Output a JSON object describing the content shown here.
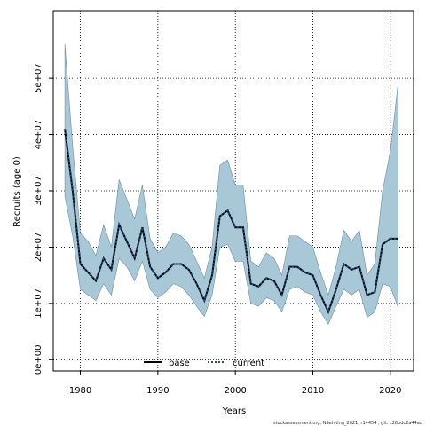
{
  "chart_data": {
    "type": "area",
    "xlabel": "Years",
    "ylabel": "Recruits (age 0)",
    "xlim": [
      1976.5,
      2023
    ],
    "ylim": [
      -2000000,
      62000000
    ],
    "x_ticks": [
      1980,
      1990,
      2000,
      2010,
      2020
    ],
    "x_tick_labels": [
      "1980",
      "1990",
      "2000",
      "2010",
      "2020"
    ],
    "y_ticks": [
      0,
      10000000,
      20000000,
      30000000,
      40000000,
      50000000
    ],
    "y_tick_labels": [
      "0e+00",
      "1e+07",
      "2e+07",
      "3e+07",
      "4e+07",
      "5e+07"
    ],
    "grid": true,
    "legend_position": "bottom",
    "legend": [
      {
        "label": "base",
        "style": "solid",
        "color": "#000000"
      },
      {
        "label": "current",
        "style": "dotted",
        "color": "#1f4e79"
      }
    ],
    "band_color": "#a8c8d8",
    "x": [
      1978,
      1979,
      1980,
      1981,
      1982,
      1983,
      1984,
      1985,
      1986,
      1987,
      1988,
      1989,
      1990,
      1991,
      1992,
      1993,
      1994,
      1995,
      1996,
      1997,
      1998,
      1999,
      2000,
      2001,
      2002,
      2003,
      2004,
      2005,
      2006,
      2007,
      2008,
      2009,
      2010,
      2011,
      2012,
      2013,
      2014,
      2015,
      2016,
      2017,
      2018,
      2019,
      2020,
      2021
    ],
    "series": [
      {
        "name": "base",
        "style": "solid",
        "values": [
          41000000,
          30000000,
          17000000,
          15500000,
          14000000,
          18000000,
          16000000,
          24000000,
          21000000,
          18000000,
          23500000,
          16500000,
          14500000,
          15500000,
          17000000,
          17000000,
          16000000,
          13500000,
          10500000,
          15000000,
          25500000,
          26500000,
          23500000,
          23500000,
          13500000,
          13000000,
          14500000,
          14000000,
          11500000,
          16500000,
          16500000,
          15500000,
          15000000,
          11500000,
          8500000,
          12500000,
          17000000,
          16000000,
          16500000,
          11500000,
          12000000,
          20500000,
          21500000,
          21500000
        ],
        "lower": [
          29000000,
          22000000,
          12500000,
          11500000,
          10500000,
          13500000,
          11500000,
          18000000,
          16500000,
          14000000,
          17500000,
          12500000,
          11000000,
          12000000,
          13500000,
          13000000,
          11500000,
          9500000,
          7700000,
          11500000,
          20000000,
          20500000,
          17500000,
          17500000,
          10000000,
          9500000,
          11000000,
          10500000,
          8500000,
          12500000,
          13000000,
          12000000,
          11500000,
          8500000,
          6300000,
          9500000,
          12500000,
          11500000,
          12500000,
          7500000,
          8500000,
          13500000,
          13000000,
          9300000
        ],
        "upper": [
          56000000,
          38000000,
          22500000,
          21000000,
          18500000,
          24000000,
          20000000,
          32000000,
          28500000,
          25000000,
          31000000,
          21500000,
          19000000,
          20000000,
          22500000,
          22000000,
          20500000,
          17500000,
          14500000,
          20000000,
          34500000,
          35500000,
          31000000,
          31000000,
          17500000,
          16500000,
          19000000,
          18000000,
          15000000,
          22000000,
          22000000,
          21000000,
          20000000,
          15500000,
          11500000,
          16500000,
          23000000,
          21000000,
          23000000,
          15000000,
          17000000,
          30000000,
          37000000,
          49000000
        ]
      },
      {
        "name": "current",
        "style": "dotted",
        "values": [
          41000000,
          30000000,
          17000000,
          15500000,
          14000000,
          18000000,
          16000000,
          24000000,
          21000000,
          18000000,
          23500000,
          16500000,
          14500000,
          15500000,
          17000000,
          17000000,
          16000000,
          13500000,
          10500000,
          15000000,
          25500000,
          26500000,
          23500000,
          23500000,
          13500000,
          13000000,
          14500000,
          14000000,
          11500000,
          16500000,
          16500000,
          15500000,
          15000000,
          11500000,
          8500000,
          12500000,
          17000000,
          16000000,
          16500000,
          11500000,
          12000000,
          20500000,
          21500000,
          21500000
        ]
      }
    ]
  },
  "footer": "stockassessment.org, NSehlting_2021, r14454 , git: c28bdc2a44ad"
}
